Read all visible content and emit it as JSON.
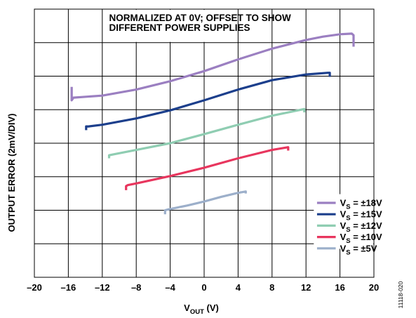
{
  "chart_data": {
    "type": "line",
    "title": "",
    "annotation": [
      "NORMALIZED AT 0V; OFFSET TO SHOW",
      "DIFFERENT POWER SUPPLIES"
    ],
    "xlabel": {
      "main": "V",
      "sub": "OUT",
      "unit": " (V)"
    },
    "ylabel": "OUTPUT ERROR (2mV/DIV)",
    "xlim": [
      -20,
      20
    ],
    "ylim": [
      0,
      8
    ],
    "y_unit": "divisions (2mV/DIV, offset per supply)",
    "x_ticks": [
      "–20",
      "–16",
      "–12",
      "–8",
      "–4",
      "0",
      "4",
      "8",
      "12",
      "16",
      "20"
    ],
    "grid": true,
    "legend_position": "bottom-right",
    "figure_id": "11118-020",
    "series": [
      {
        "name": {
          "main": "V",
          "sub": "S",
          "rest": " = ±18V"
        },
        "color": "#9B7FC1",
        "x": [
          -15.6,
          -15.6,
          -15.4,
          -12,
          -8,
          -4,
          0,
          4,
          8,
          12,
          14,
          16,
          17.4,
          17.6,
          17.6
        ],
        "y": [
          5.68,
          5.28,
          5.36,
          5.42,
          5.6,
          5.85,
          6.15,
          6.5,
          6.82,
          7.08,
          7.18,
          7.25,
          7.27,
          7.22,
          6.88
        ]
      },
      {
        "name": {
          "main": "V",
          "sub": "S",
          "rest": " = ±15V"
        },
        "color": "#1C3F8C",
        "x": [
          -13.9,
          -13.9,
          -13.6,
          -12,
          -8,
          -4,
          0,
          4,
          8,
          12,
          14.6,
          14.8,
          14.8
        ],
        "y": [
          4.39,
          4.5,
          4.5,
          4.55,
          4.74,
          4.98,
          5.28,
          5.6,
          5.88,
          6.05,
          6.1,
          6.1,
          5.98
        ]
      },
      {
        "name": {
          "main": "V",
          "sub": "S",
          "rest": " = ±12V"
        },
        "color": "#8FCDB2",
        "x": [
          -11.2,
          -11.2,
          -10.8,
          -8,
          -4,
          0,
          4,
          8,
          11.8,
          11.8
        ],
        "y": [
          3.55,
          3.64,
          3.66,
          3.8,
          4.0,
          4.27,
          4.55,
          4.82,
          5.02,
          4.92
        ]
      },
      {
        "name": {
          "main": "V",
          "sub": "S",
          "rest": " = ±10V"
        },
        "color": "#E8365E",
        "x": [
          -9.2,
          -9.2,
          -9.0,
          -8,
          -4,
          0,
          4,
          8,
          9.9,
          9.9
        ],
        "y": [
          2.6,
          2.72,
          2.75,
          2.8,
          3.02,
          3.27,
          3.55,
          3.8,
          3.88,
          3.78
        ]
      },
      {
        "name": {
          "main": "V",
          "sub": "S",
          "rest": " = ±5V"
        },
        "color": "#9CAFCA",
        "x": [
          -4.6,
          -4.6,
          -4.3,
          -2,
          0,
          2,
          4,
          4.9,
          4.9
        ],
        "y": [
          1.88,
          2.0,
          2.02,
          2.14,
          2.26,
          2.4,
          2.52,
          2.56,
          2.5
        ]
      }
    ]
  }
}
